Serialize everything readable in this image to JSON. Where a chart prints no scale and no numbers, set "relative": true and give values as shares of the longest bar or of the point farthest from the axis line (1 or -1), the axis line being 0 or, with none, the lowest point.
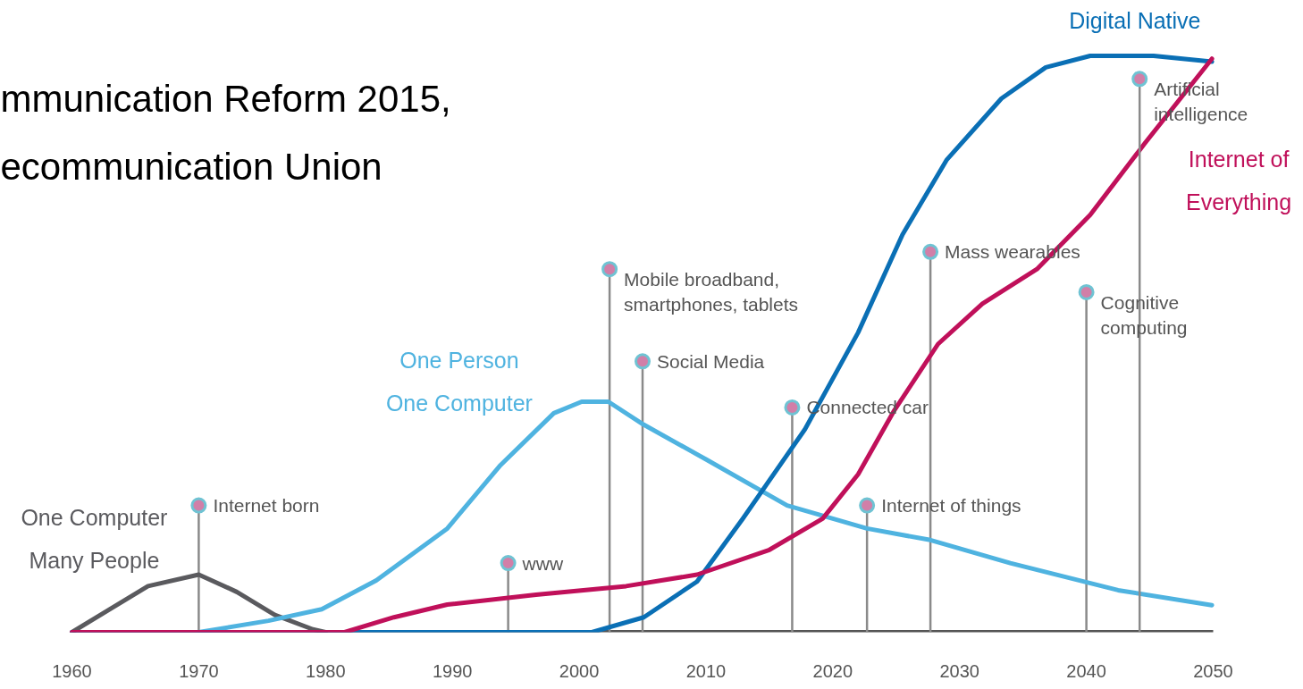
{
  "chart_data": {
    "type": "line",
    "relative": true,
    "xlim": [
      1960,
      2050
    ],
    "xticks": [
      1960,
      1970,
      1980,
      1990,
      2000,
      2010,
      2020,
      2030,
      2040,
      2050
    ],
    "grid": false,
    "line_style": "solid",
    "tick_labels": "x",
    "series": [
      {
        "name": "One Computer Many People",
        "color": "#5a5a5e",
        "x": [
          1960,
          1963,
          1966,
          1970,
          1973,
          1976,
          1979,
          1980
        ],
        "values": [
          0,
          0.04,
          0.08,
          0.1,
          0.07,
          0.03,
          0.005,
          0
        ]
      },
      {
        "name": "One Person One Computer",
        "color": "#4fb3e0",
        "x": [
          1970,
          1975.5,
          1979.7,
          1984,
          1989.6,
          1993.8,
          1998,
          2000.2,
          2002.3,
          2005.1,
          2010,
          2016.4,
          2022.7,
          2027.7,
          2034,
          2042.5,
          2049.9
        ],
        "values": [
          0,
          0.02,
          0.04,
          0.09,
          0.18,
          0.29,
          0.38,
          0.4,
          0.4,
          0.36,
          0.3,
          0.22,
          0.18,
          0.16,
          0.12,
          0.073,
          0.047
        ]
      },
      {
        "name": "Digital Native",
        "color": "#0a6fb5",
        "x": [
          1960,
          2001,
          2005.1,
          2009.3,
          2012.9,
          2017.8,
          2022,
          2025.5,
          2029,
          2033.3,
          2036.8,
          2040.3,
          2045.3,
          2049.9
        ],
        "values": [
          0,
          0,
          0.026,
          0.088,
          0.197,
          0.352,
          0.52,
          0.69,
          0.82,
          0.926,
          0.98,
          1.0,
          1.0,
          0.99
        ]
      },
      {
        "name": "Internet of Everything",
        "color": "#c0105a",
        "x": [
          1960,
          1981.5,
          1985.4,
          1989.6,
          1996.6,
          2003.7,
          2009.3,
          2015,
          2019.2,
          2022,
          2024.8,
          2028.3,
          2031.8,
          2036.1,
          2040.3,
          2044.6,
          2049.9
        ],
        "values": [
          0,
          0,
          0.026,
          0.048,
          0.065,
          0.08,
          0.1,
          0.143,
          0.197,
          0.274,
          0.383,
          0.5,
          0.57,
          0.63,
          0.724,
          0.848,
          0.995
        ]
      }
    ],
    "annotations": [
      "mmunication Reform 2015,",
      "ecommunication Union",
      {
        "text": "Internet born",
        "x": 1970,
        "y": 0.22
      },
      {
        "text": "www",
        "x": 1994.4,
        "y": 0.12
      },
      {
        "text": "Mobile broadband, smartphones, tablets",
        "x": 2002.4,
        "y": 0.63
      },
      {
        "text": "Social Media",
        "x": 2005,
        "y": 0.47
      },
      {
        "text": "Connected car",
        "x": 2016.8,
        "y": 0.39
      },
      {
        "text": "Internet of things",
        "x": 2022.7,
        "y": 0.22
      },
      {
        "text": "Mass wearables",
        "x": 2027.7,
        "y": 0.66
      },
      {
        "text": "Cognitive computing",
        "x": 2040,
        "y": 0.59
      },
      {
        "text": "Artificial intelligence",
        "x": 2044.2,
        "y": 0.96
      }
    ],
    "ref_lines": [
      {
        "axis": "x",
        "value": 2044.2,
        "color": "#8a8a8a"
      }
    ]
  }
}
